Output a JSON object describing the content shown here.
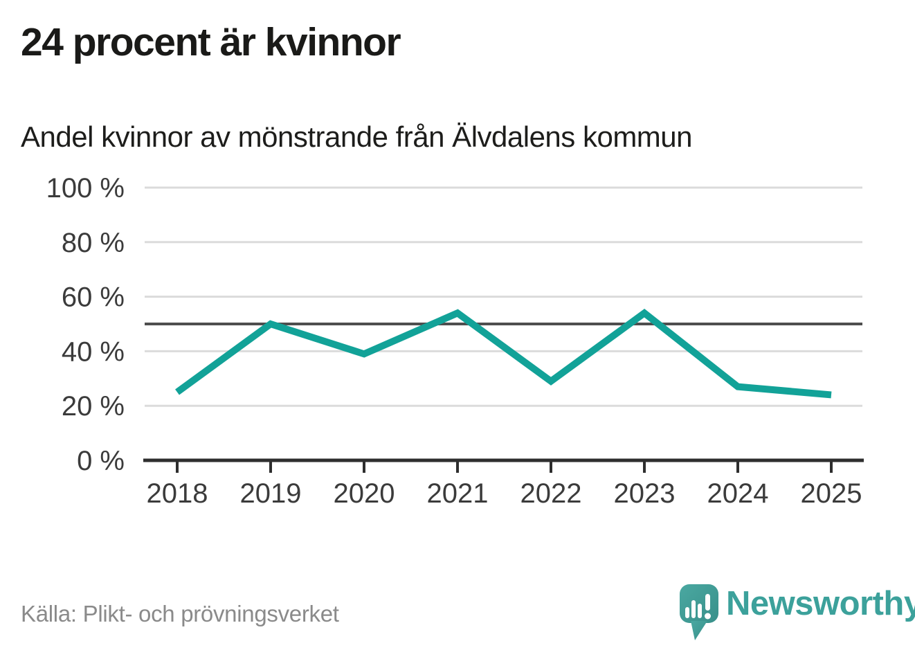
{
  "header": {
    "title": "24 procent är kvinnor",
    "subtitle": "Andel kvinnor av mönstrande från Älvdalens kommun"
  },
  "chart_data": {
    "type": "line",
    "title": "24 procent är kvinnor",
    "subtitle": "Andel kvinnor av mönstrande från Älvdalens kommun",
    "categories": [
      "2018",
      "2019",
      "2020",
      "2021",
      "2022",
      "2023",
      "2024",
      "2025"
    ],
    "values": [
      25,
      50,
      39,
      54,
      29,
      54,
      27,
      24
    ],
    "ylim": [
      0,
      100
    ],
    "y_ticks": [
      {
        "value": 0,
        "label": "0 %"
      },
      {
        "value": 20,
        "label": "20 %"
      },
      {
        "value": 40,
        "label": "40 %"
      },
      {
        "value": 60,
        "label": "60 %"
      },
      {
        "value": 80,
        "label": "80 %"
      },
      {
        "value": 100,
        "label": "100 %"
      }
    ],
    "reference_line": 50,
    "grid": true,
    "legend_position": "none",
    "line_color": "#12a298",
    "grid_color": "#dbdbdb",
    "reference_color": "#4e4e4e",
    "axis_color": "#2e2e2e",
    "tick_label_color": "#3b3b3b"
  },
  "footer": {
    "source": "Källa: Plikt- och prövningsverket",
    "brand": "Newsworthy",
    "brand_color": "#3ca19b",
    "logo_color": "#41a09a"
  }
}
